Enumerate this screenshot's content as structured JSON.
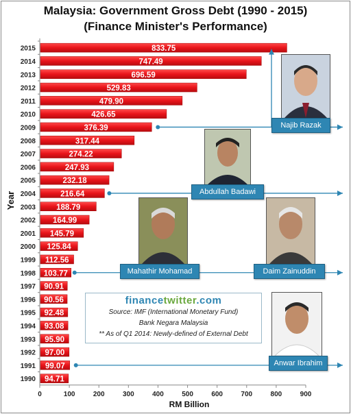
{
  "title_line1": "Malaysia: Government Gross Debt (1990 - 2015)",
  "title_line2": "(Finance Minister's Performance)",
  "chart_data": {
    "type": "bar",
    "orientation": "horizontal",
    "categories": [
      "1990",
      "1991",
      "1992",
      "1993",
      "1994",
      "1995",
      "1996",
      "1997",
      "1998",
      "1999",
      "2000",
      "2001",
      "2002",
      "2003",
      "2004",
      "2005",
      "2006",
      "2007",
      "2008",
      "2009",
      "2010",
      "2011",
      "2012",
      "2013",
      "2014",
      "2015"
    ],
    "values": [
      94.71,
      99.07,
      97.0,
      95.9,
      93.08,
      92.48,
      90.56,
      90.91,
      103.77,
      112.56,
      125.84,
      145.79,
      164.99,
      188.79,
      216.64,
      232.18,
      247.93,
      274.22,
      317.44,
      376.39,
      426.65,
      479.9,
      529.83,
      696.59,
      747.49,
      833.75
    ],
    "value_labels": [
      "94.71",
      "99.07",
      "97.00",
      "95.90",
      "93.08",
      "92.48",
      "90.56",
      "90.91",
      "103.77",
      "112.56",
      "125.84",
      "145.79",
      "164.99",
      "188.79",
      "216.64",
      "232.18",
      "247.93",
      "274.22",
      "317.44",
      "376.39",
      "426.65",
      "479.90",
      "529.83",
      "696.59",
      "747.49",
      "833.75"
    ],
    "xlabel": "RM Billion",
    "ylabel": "Year",
    "xlim": [
      0,
      900
    ],
    "xticks": [
      0,
      100,
      200,
      300,
      400,
      500,
      600,
      700,
      800,
      900
    ],
    "bar_color": "#e8141a",
    "legend": "none"
  },
  "ministers": [
    {
      "name": "Najib Razak",
      "start_year": "2009",
      "end_year": "2015"
    },
    {
      "name": "Abdullah Badawi",
      "start_year": "2004",
      "end_year": ""
    },
    {
      "name": "Mahathir Mohamad",
      "start_year": "1998",
      "end_year": ""
    },
    {
      "name": "Daim Zainuddin",
      "start_year": "",
      "end_year": ""
    },
    {
      "name": "Anwar Ibrahim",
      "start_year": "1991",
      "end_year": ""
    }
  ],
  "source": {
    "brand_part1": "finance",
    "brand_part2": "twitter",
    "brand_part3": ".com",
    "line1": "Source: IMF (International Monetary Fund)",
    "line2": "Bank Negara Malaysia",
    "line3": "** As of Q1 2014: Newly-defined of External Debt"
  },
  "colors": {
    "bar": "#e8141a",
    "arrow": "#2e86b3",
    "name_box": "#2e86b3"
  }
}
